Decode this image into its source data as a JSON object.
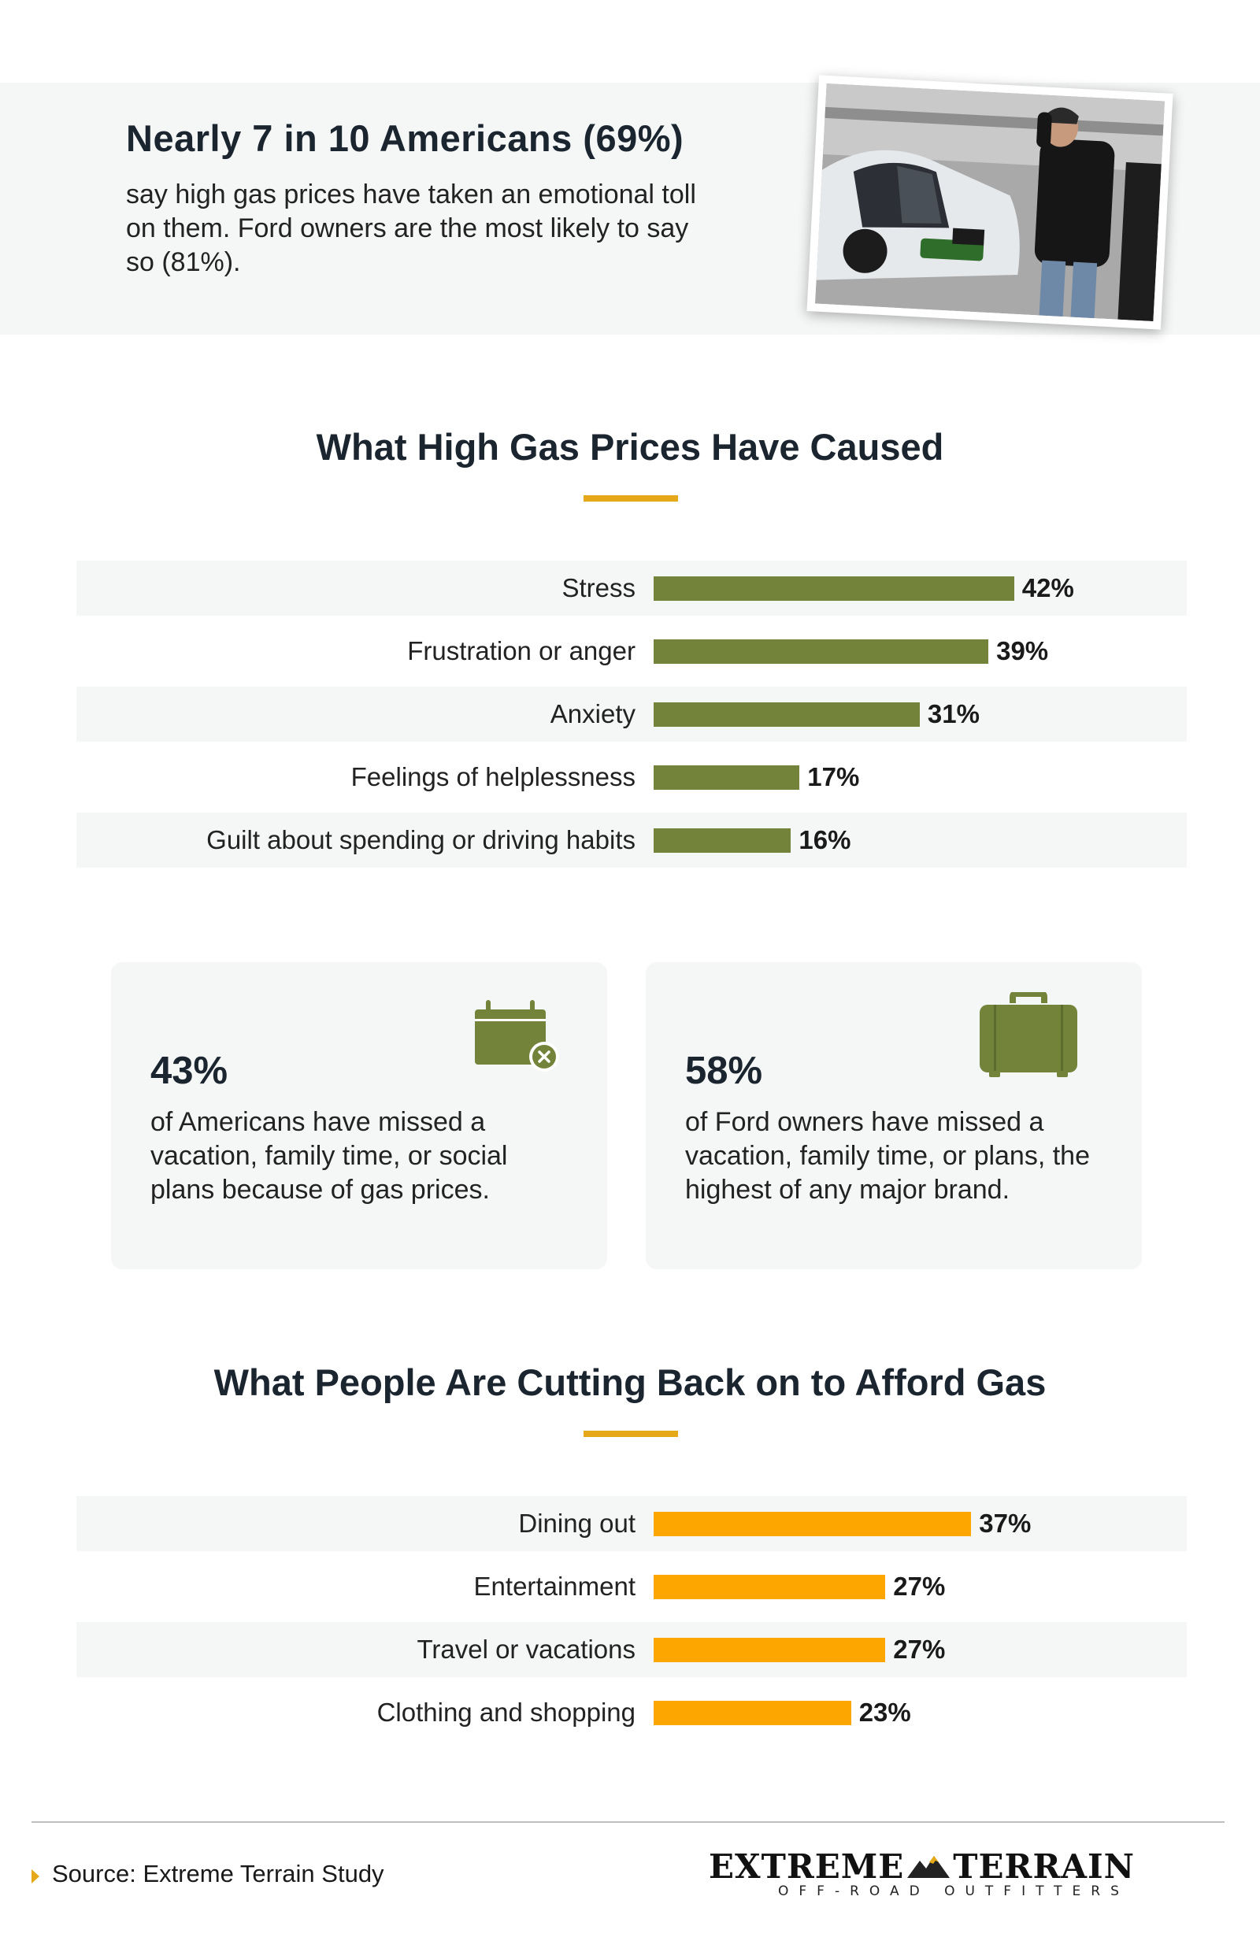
{
  "hero": {
    "title": "Nearly 7 in 10 Americans (69%)",
    "text": "say high gas prices have taken an emotional toll on them. Ford owners are the most likely to say so (81%)."
  },
  "chart_data": [
    {
      "type": "bar",
      "orientation": "horizontal",
      "title": "What High Gas Prices Have Caused",
      "categories": [
        "Stress",
        "Frustration or anger",
        "Anxiety",
        "Feelings of helplessness",
        "Guilt about spending or driving habits"
      ],
      "values": [
        42,
        39,
        31,
        17,
        16
      ],
      "value_labels": [
        "42%",
        "39%",
        "31%",
        "17%",
        "16%"
      ],
      "bar_color": "#73843a",
      "xlim": [
        0,
        100
      ]
    },
    {
      "type": "bar",
      "orientation": "horizontal",
      "title": "What People Are Cutting Back on to Afford Gas",
      "categories": [
        "Dining out",
        "Entertainment",
        "Travel or vacations",
        "Clothing and shopping"
      ],
      "values": [
        37,
        27,
        27,
        23
      ],
      "value_labels": [
        "37%",
        "27%",
        "27%",
        "23%"
      ],
      "bar_color": "#fda600",
      "xlim": [
        0,
        100
      ]
    }
  ],
  "cards": [
    {
      "number": "43%",
      "text": "of Americans have missed a vacation, family time, or social plans because of gas prices.",
      "icon": "calendar-x-icon"
    },
    {
      "number": "58%",
      "text": "of Ford owners have missed a vacation, family time, or plans, the highest of any major brand.",
      "icon": "suitcase-icon"
    }
  ],
  "footer": {
    "source": "Source: Extreme Terrain Study",
    "logo_main_left": "EXTREME",
    "logo_main_right": "TERRAIN",
    "logo_sub": "OFF-ROAD OUTFITTERS"
  },
  "colors": {
    "accent": "#e5a818",
    "green": "#73843a",
    "orange": "#fda600",
    "panel": "#f5f6f6",
    "heading": "#1b2530"
  }
}
